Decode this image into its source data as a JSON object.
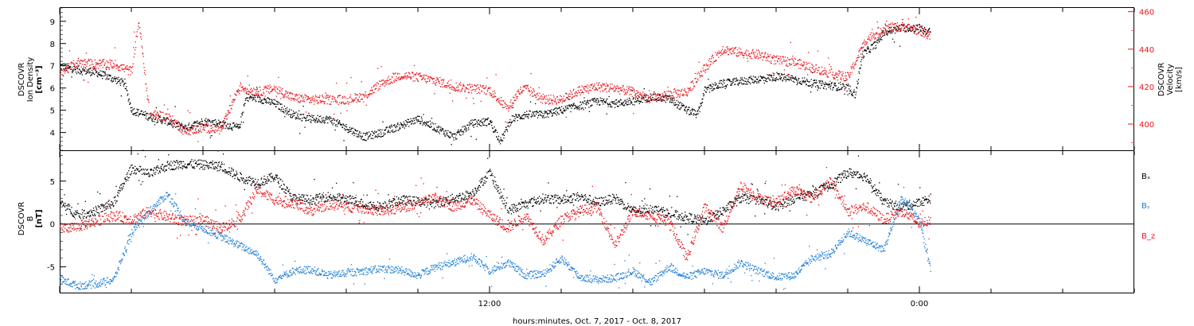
{
  "colors": {
    "black": "#000000",
    "red": "#e8141c",
    "blue": "#1f7fd6"
  },
  "x_axis": {
    "label": "hours:minutes, Oct.  7, 2017 - Oct.  8, 2017",
    "range_hours": [
      0,
      30
    ],
    "major_ticks": [
      {
        "hour": 12,
        "label": "12:00"
      },
      {
        "hour": 24,
        "label": "0:00"
      }
    ]
  },
  "chart_data": [
    {
      "type": "scatter",
      "panel": "top",
      "left_axis": {
        "label_lines": [
          "DSCOVR",
          "Ion Density",
          "[cm⁻³]"
        ],
        "range": [
          3.2,
          9.6
        ],
        "ticks": [
          4,
          5,
          6,
          7,
          8,
          9
        ]
      },
      "right_axis": {
        "label_lines": [
          "DSCOVR",
          "Velocity",
          "[km/s]"
        ],
        "range": [
          386,
          462
        ],
        "ticks": [
          400,
          420,
          440,
          460
        ]
      },
      "series": [
        {
          "axis": "left",
          "color": "black",
          "points": [
            [
              0,
              7.0
            ],
            [
              0.5,
              6.8
            ],
            [
              1,
              6.7
            ],
            [
              1.5,
              6.4
            ],
            [
              1.8,
              6.2
            ],
            [
              2,
              5.0
            ],
            [
              2.5,
              4.7
            ],
            [
              3,
              4.5
            ],
            [
              3.5,
              4.2
            ],
            [
              4,
              4.5
            ],
            [
              4.5,
              4.4
            ],
            [
              5,
              4.2
            ],
            [
              5.2,
              5.6
            ],
            [
              5.6,
              5.5
            ],
            [
              6,
              5.3
            ],
            [
              6.5,
              4.8
            ],
            [
              7,
              4.6
            ],
            [
              7.5,
              4.6
            ],
            [
              8,
              4.2
            ],
            [
              8.5,
              3.8
            ],
            [
              9,
              4.0
            ],
            [
              9.5,
              4.3
            ],
            [
              10,
              4.6
            ],
            [
              10.5,
              4.2
            ],
            [
              11,
              3.8
            ],
            [
              11.5,
              4.4
            ],
            [
              12,
              4.5
            ],
            [
              12.3,
              3.6
            ],
            [
              12.6,
              4.6
            ],
            [
              13,
              4.8
            ],
            [
              13.5,
              4.8
            ],
            [
              14,
              5.0
            ],
            [
              14.5,
              5.2
            ],
            [
              15,
              5.4
            ],
            [
              15.5,
              5.3
            ],
            [
              16,
              5.4
            ],
            [
              16.5,
              5.6
            ],
            [
              17,
              5.5
            ],
            [
              17.5,
              5.0
            ],
            [
              17.8,
              4.8
            ],
            [
              18,
              5.9
            ],
            [
              18.5,
              6.2
            ],
            [
              19,
              6.3
            ],
            [
              19.5,
              6.4
            ],
            [
              20,
              6.5
            ],
            [
              20.5,
              6.4
            ],
            [
              21,
              6.2
            ],
            [
              21.5,
              6.1
            ],
            [
              22,
              6.0
            ],
            [
              22.2,
              5.7
            ],
            [
              22.4,
              7.5
            ],
            [
              22.8,
              8.0
            ],
            [
              23,
              8.5
            ],
            [
              23.5,
              8.7
            ],
            [
              24,
              8.7
            ],
            [
              24.3,
              8.5
            ]
          ]
        },
        {
          "axis": "right",
          "color": "red",
          "points": [
            [
              0,
              427
            ],
            [
              0.5,
              433
            ],
            [
              1,
              432
            ],
            [
              1.5,
              432
            ],
            [
              2,
              428
            ],
            [
              2.2,
              455
            ],
            [
              2.5,
              405
            ],
            [
              3,
              404
            ],
            [
              3.5,
              396
            ],
            [
              4,
              398
            ],
            [
              4.5,
              397
            ],
            [
              5,
              420
            ],
            [
              5.5,
              417
            ],
            [
              6,
              419
            ],
            [
              6.5,
              414
            ],
            [
              7,
              413
            ],
            [
              7.5,
              413
            ],
            [
              8,
              413
            ],
            [
              8.5,
              415
            ],
            [
              9,
              422
            ],
            [
              9.5,
              426
            ],
            [
              10,
              425
            ],
            [
              10.5,
              423
            ],
            [
              11,
              420
            ],
            [
              11.5,
              419
            ],
            [
              12,
              418
            ],
            [
              12.5,
              408
            ],
            [
              12.8,
              417
            ],
            [
              13,
              419
            ],
            [
              13.5,
              413
            ],
            [
              14,
              413
            ],
            [
              14.5,
              418
            ],
            [
              15,
              420
            ],
            [
              15.5,
              419
            ],
            [
              16,
              417
            ],
            [
              16.5,
              413
            ],
            [
              17,
              416
            ],
            [
              17.5,
              417
            ],
            [
              18,
              430
            ],
            [
              18.5,
              440
            ],
            [
              19,
              438
            ],
            [
              19.5,
              437
            ],
            [
              20,
              434
            ],
            [
              20.5,
              433
            ],
            [
              21,
              430
            ],
            [
              21.5,
              427
            ],
            [
              22,
              425
            ],
            [
              22.5,
              445
            ],
            [
              23,
              451
            ],
            [
              23.5,
              452
            ],
            [
              24,
              450
            ],
            [
              24.3,
              447
            ]
          ]
        }
      ]
    },
    {
      "type": "scatter",
      "panel": "bottom",
      "left_axis": {
        "label_lines": [
          "DSCOVR",
          "B",
          "[nT]"
        ],
        "range": [
          -8.0,
          8.5
        ],
        "ticks": [
          -5,
          0,
          5
        ]
      },
      "zero_line": 0,
      "series": [
        {
          "name": "Bₓ",
          "color": "black",
          "points": [
            [
              0,
              2.5
            ],
            [
              0.5,
              1.0
            ],
            [
              1,
              1.5
            ],
            [
              1.5,
              2.5
            ],
            [
              2,
              6.5
            ],
            [
              2.5,
              5.8
            ],
            [
              3,
              6.8
            ],
            [
              3.5,
              7.0
            ],
            [
              4,
              6.9
            ],
            [
              4.5,
              6.7
            ],
            [
              5,
              5.5
            ],
            [
              5.5,
              4.8
            ],
            [
              6,
              5.5
            ],
            [
              6.5,
              3.0
            ],
            [
              7,
              2.8
            ],
            [
              7.5,
              3.2
            ],
            [
              8,
              2.9
            ],
            [
              8.5,
              2.3
            ],
            [
              9,
              2.0
            ],
            [
              9.5,
              2.8
            ],
            [
              10,
              2.6
            ],
            [
              10.5,
              2.4
            ],
            [
              11,
              3.0
            ],
            [
              11.5,
              3.5
            ],
            [
              12,
              6.0
            ],
            [
              12.5,
              1.6
            ],
            [
              13,
              2.3
            ],
            [
              13.5,
              3.0
            ],
            [
              14,
              2.8
            ],
            [
              14.5,
              3.2
            ],
            [
              15,
              2.5
            ],
            [
              15.5,
              3.0
            ],
            [
              16,
              1.5
            ],
            [
              16.5,
              1.8
            ],
            [
              17,
              1.2
            ],
            [
              17.5,
              0.8
            ],
            [
              18,
              0.3
            ],
            [
              18.5,
              1.5
            ],
            [
              19,
              3.0
            ],
            [
              19.5,
              2.8
            ],
            [
              20,
              2.0
            ],
            [
              20.5,
              3.0
            ],
            [
              21,
              3.5
            ],
            [
              21.5,
              4.5
            ],
            [
              22,
              6.0
            ],
            [
              22.5,
              5.5
            ],
            [
              23,
              2.5
            ],
            [
              23.5,
              2.0
            ],
            [
              24,
              2.5
            ],
            [
              24.3,
              3.0
            ]
          ]
        },
        {
          "name": "Bᵧ",
          "color": "blue",
          "points": [
            [
              0,
              -6.5
            ],
            [
              0.5,
              -7.2
            ],
            [
              1,
              -7.0
            ],
            [
              1.5,
              -6.5
            ],
            [
              2,
              -1.0
            ],
            [
              2.5,
              1.5
            ],
            [
              3,
              3.5
            ],
            [
              3.5,
              0.2
            ],
            [
              4,
              -0.5
            ],
            [
              4.5,
              -1.5
            ],
            [
              5,
              -2.5
            ],
            [
              5.5,
              -3.5
            ],
            [
              6,
              -6.5
            ],
            [
              6.5,
              -5.5
            ],
            [
              7,
              -5.3
            ],
            [
              7.5,
              -6.0
            ],
            [
              8,
              -5.7
            ],
            [
              8.5,
              -5.5
            ],
            [
              9,
              -5.2
            ],
            [
              9.5,
              -5.4
            ],
            [
              10,
              -6.0
            ],
            [
              10.5,
              -5.0
            ],
            [
              11,
              -4.5
            ],
            [
              11.5,
              -3.8
            ],
            [
              12,
              -5.5
            ],
            [
              12.5,
              -4.5
            ],
            [
              13,
              -6.0
            ],
            [
              13.5,
              -5.8
            ],
            [
              14,
              -4.0
            ],
            [
              14.5,
              -6.2
            ],
            [
              15,
              -6.5
            ],
            [
              15.5,
              -6.3
            ],
            [
              16,
              -5.5
            ],
            [
              16.5,
              -6.8
            ],
            [
              17,
              -5.0
            ],
            [
              17.5,
              -6.2
            ],
            [
              18,
              -5.5
            ],
            [
              18.5,
              -6.0
            ],
            [
              19,
              -4.5
            ],
            [
              19.5,
              -5.5
            ],
            [
              20,
              -6.2
            ],
            [
              20.5,
              -6.0
            ],
            [
              21,
              -4.0
            ],
            [
              21.5,
              -3.5
            ],
            [
              22,
              -1.0
            ],
            [
              22.5,
              -2.0
            ],
            [
              23,
              -3.0
            ],
            [
              23.5,
              3.0
            ],
            [
              24,
              0.5
            ],
            [
              24.3,
              -5.5
            ]
          ]
        },
        {
          "name": "B_z",
          "color": "red",
          "points": [
            [
              0,
              -0.5
            ],
            [
              0.5,
              -0.3
            ],
            [
              1,
              0.3
            ],
            [
              1.5,
              1.0
            ],
            [
              2,
              0.5
            ],
            [
              2.5,
              1.5
            ],
            [
              3,
              0.8
            ],
            [
              3.5,
              0.3
            ],
            [
              4,
              0.5
            ],
            [
              4.5,
              -0.5
            ],
            [
              5,
              0.5
            ],
            [
              5.5,
              4.0
            ],
            [
              6,
              2.8
            ],
            [
              6.5,
              2.5
            ],
            [
              7,
              1.5
            ],
            [
              7.5,
              2.3
            ],
            [
              8,
              2.0
            ],
            [
              8.5,
              1.8
            ],
            [
              9,
              1.5
            ],
            [
              9.5,
              1.8
            ],
            [
              10,
              2.5
            ],
            [
              10.5,
              3.0
            ],
            [
              11,
              2.0
            ],
            [
              11.5,
              2.8
            ],
            [
              12,
              1.0
            ],
            [
              12.5,
              -0.5
            ],
            [
              13,
              1.0
            ],
            [
              13.5,
              -2.0
            ],
            [
              14,
              0.5
            ],
            [
              14.5,
              1.5
            ],
            [
              15,
              2.0
            ],
            [
              15.5,
              -2.5
            ],
            [
              16,
              1.5
            ],
            [
              16.5,
              1.0
            ],
            [
              17,
              0.3
            ],
            [
              17.5,
              -4.0
            ],
            [
              18,
              2.0
            ],
            [
              18.5,
              -0.5
            ],
            [
              19,
              4.5
            ],
            [
              19.5,
              3.0
            ],
            [
              20,
              2.5
            ],
            [
              20.5,
              4.0
            ],
            [
              21,
              3.0
            ],
            [
              21.5,
              5.0
            ],
            [
              22,
              1.5
            ],
            [
              22.5,
              2.0
            ],
            [
              23,
              0.5
            ],
            [
              23.5,
              1.5
            ],
            [
              24,
              0.0
            ],
            [
              24.3,
              0.5
            ]
          ]
        }
      ]
    }
  ]
}
